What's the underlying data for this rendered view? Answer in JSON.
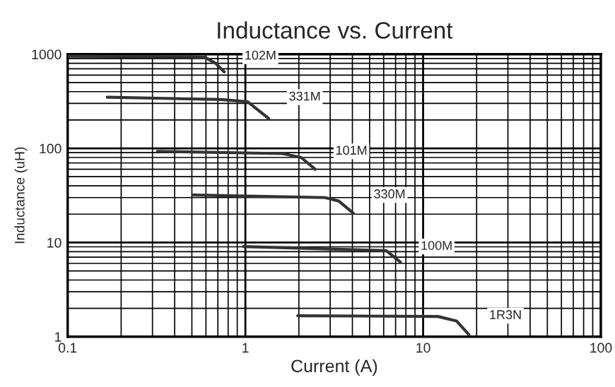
{
  "chart_data": {
    "type": "line",
    "title": "Inductance vs. Current",
    "xlabel": "Current (A)",
    "ylabel": "Inductance (uH)",
    "log": "xy",
    "xlim": [
      0.1,
      100
    ],
    "ylim": [
      1,
      1000
    ],
    "xticks": [
      0.1,
      1,
      10,
      100
    ],
    "yticks": [
      1,
      10,
      100,
      1000
    ],
    "grid": true,
    "legend": false,
    "marker": "none",
    "line_style": "solid",
    "series": [
      {
        "name": "102M",
        "color": "#333333",
        "x": [
          0.1,
          0.5,
          0.59,
          0.68,
          0.76
        ],
        "values": [
          950,
          940,
          930,
          800,
          650
        ]
      },
      {
        "name": "331M",
        "color": "#333333",
        "x": [
          0.167,
          0.73,
          1.03,
          1.35
        ],
        "values": [
          349,
          330,
          312,
          208
        ]
      },
      {
        "name": "101M",
        "color": "#333333",
        "x": [
          0.32,
          1.62,
          2.06,
          2.47
        ],
        "values": [
          93,
          88,
          80,
          60
        ]
      },
      {
        "name": "330M",
        "color": "#333333",
        "x": [
          0.51,
          2.8,
          3.35,
          4.05
        ],
        "values": [
          32,
          30,
          27.6,
          20.5
        ]
      },
      {
        "name": "100M",
        "color": "#333333",
        "x": [
          0.975,
          6.2,
          7.45
        ],
        "values": [
          9.06,
          8.2,
          6.2
        ]
      },
      {
        "name": "1R3N",
        "color": "#333333",
        "x": [
          1.97,
          12.1,
          15.4,
          18.1
        ],
        "values": [
          1.67,
          1.64,
          1.47,
          1.05
        ]
      }
    ]
  }
}
